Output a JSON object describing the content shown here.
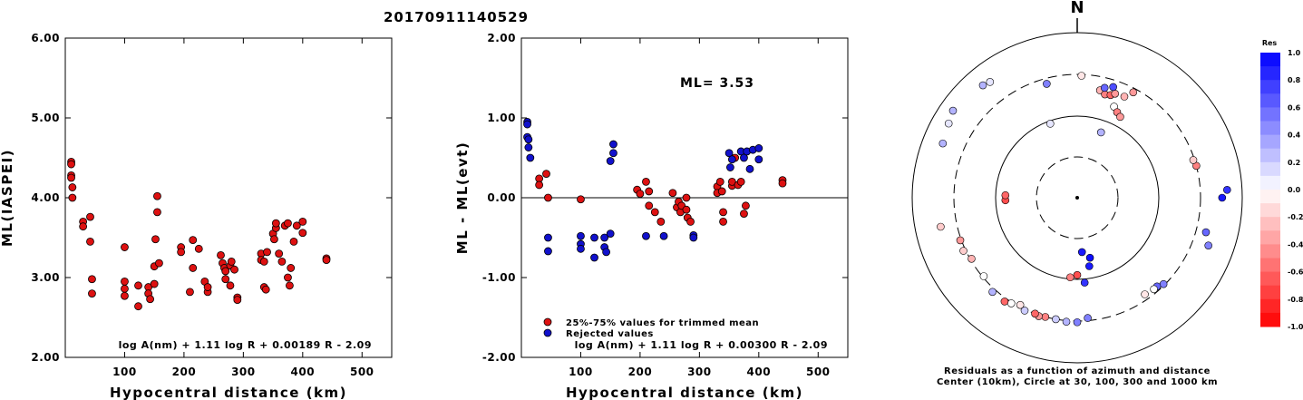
{
  "title": "20170911140529",
  "colors": {
    "accepted": "#dd1111",
    "rejected": "#1111cc",
    "stroke": "#000000"
  },
  "chart_data": [
    {
      "type": "scatter",
      "xlabel": "Hypocentral distance (km)",
      "ylabel": "ML(IASPEI)",
      "xlim": [
        0,
        550
      ],
      "ylim": [
        2.0,
        6.0
      ],
      "xticks": [
        "100",
        "200",
        "300",
        "400",
        "500"
      ],
      "yticks": [
        "2.00",
        "3.00",
        "4.00",
        "5.00",
        "6.00"
      ],
      "formula": "log A(nm) + 1.11 log R + 0.00189 R - 2.09",
      "series": [
        {
          "points": [
            [
              10,
              4.45
            ],
            [
              10,
              4.42
            ],
            [
              10,
              4.28
            ],
            [
              10,
              4.25
            ],
            [
              12,
              4.13
            ],
            [
              12,
              4.0
            ],
            [
              30,
              3.7
            ],
            [
              30,
              3.64
            ],
            [
              42,
              3.76
            ],
            [
              42,
              3.45
            ],
            [
              45,
              2.98
            ],
            [
              45,
              2.8
            ],
            [
              100,
              3.38
            ],
            [
              100,
              2.95
            ],
            [
              100,
              2.86
            ],
            [
              100,
              2.77
            ],
            [
              123,
              2.9
            ],
            [
              123,
              2.64
            ],
            [
              140,
              2.88
            ],
            [
              140,
              2.8
            ],
            [
              143,
              2.73
            ],
            [
              150,
              3.14
            ],
            [
              150,
              2.92
            ],
            [
              152,
              3.48
            ],
            [
              155,
              4.02
            ],
            [
              155,
              3.82
            ],
            [
              158,
              3.18
            ],
            [
              195,
              3.38
            ],
            [
              195,
              3.32
            ],
            [
              210,
              2.82
            ],
            [
              215,
              3.12
            ],
            [
              215,
              3.47
            ],
            [
              225,
              3.36
            ],
            [
              235,
              2.95
            ],
            [
              240,
              2.82
            ],
            [
              240,
              2.88
            ],
            [
              262,
              3.28
            ],
            [
              265,
              3.18
            ],
            [
              268,
              3.12
            ],
            [
              270,
              2.98
            ],
            [
              270,
              3.08
            ],
            [
              278,
              3.15
            ],
            [
              278,
              2.9
            ],
            [
              280,
              3.2
            ],
            [
              285,
              3.1
            ],
            [
              290,
              2.75
            ],
            [
              290,
              2.72
            ],
            [
              330,
              3.3
            ],
            [
              330,
              3.22
            ],
            [
              335,
              3.2
            ],
            [
              335,
              2.88
            ],
            [
              338,
              2.85
            ],
            [
              340,
              3.32
            ],
            [
              350,
              3.55
            ],
            [
              352,
              3.48
            ],
            [
              355,
              3.62
            ],
            [
              355,
              3.68
            ],
            [
              360,
              3.3
            ],
            [
              365,
              3.2
            ],
            [
              370,
              3.65
            ],
            [
              375,
              3.68
            ],
            [
              375,
              3.0
            ],
            [
              378,
              2.9
            ],
            [
              380,
              3.12
            ],
            [
              385,
              3.45
            ],
            [
              390,
              3.65
            ],
            [
              400,
              3.7
            ],
            [
              400,
              3.56
            ],
            [
              440,
              3.24
            ],
            [
              440,
              3.22
            ]
          ]
        }
      ]
    },
    {
      "type": "scatter",
      "xlabel": "Hypocentral distance (km)",
      "ylabel": "ML - ML(evt)",
      "xlim": [
        0,
        550
      ],
      "ylim": [
        -2.0,
        2.0
      ],
      "xticks": [
        "100",
        "200",
        "300",
        "400",
        "500"
      ],
      "yticks": [
        "-2.00",
        "-1.00",
        "0.00",
        "1.00",
        "2.00"
      ],
      "formula": "log A(nm) + 1.11 log R + 0.00300 R - 2.09",
      "annotation": "ML= 3.53",
      "legend": [
        "25%-75% values for trimmed mean",
        "Rejected values"
      ],
      "series": [
        {
          "name": "25%-75% values for trimmed mean",
          "points": [
            [
              30,
              0.24
            ],
            [
              30,
              0.16
            ],
            [
              42,
              0.3
            ],
            [
              45,
              0.0
            ],
            [
              100,
              -0.02
            ],
            [
              195,
              0.1
            ],
            [
              200,
              0.05
            ],
            [
              210,
              0.2
            ],
            [
              215,
              0.08
            ],
            [
              215,
              -0.1
            ],
            [
              225,
              -0.18
            ],
            [
              235,
              -0.3
            ],
            [
              255,
              0.06
            ],
            [
              262,
              -0.12
            ],
            [
              265,
              -0.05
            ],
            [
              268,
              -0.18
            ],
            [
              270,
              -0.1
            ],
            [
              278,
              0.0
            ],
            [
              278,
              -0.15
            ],
            [
              280,
              -0.25
            ],
            [
              285,
              -0.3
            ],
            [
              330,
              0.14
            ],
            [
              330,
              0.06
            ],
            [
              335,
              0.2
            ],
            [
              338,
              0.08
            ],
            [
              340,
              -0.18
            ],
            [
              340,
              -0.3
            ],
            [
              355,
              0.15
            ],
            [
              355,
              0.2
            ],
            [
              360,
              0.5
            ],
            [
              365,
              0.16
            ],
            [
              370,
              0.2
            ],
            [
              375,
              -0.2
            ],
            [
              378,
              -0.1
            ],
            [
              440,
              0.22
            ],
            [
              440,
              0.18
            ]
          ]
        },
        {
          "name": "Rejected values",
          "points": [
            [
              10,
              0.95
            ],
            [
              10,
              0.92
            ],
            [
              10,
              0.76
            ],
            [
              12,
              0.73
            ],
            [
              12,
              0.63
            ],
            [
              15,
              0.5
            ],
            [
              45,
              -0.5
            ],
            [
              45,
              -0.67
            ],
            [
              100,
              -0.48
            ],
            [
              100,
              -0.58
            ],
            [
              100,
              -0.64
            ],
            [
              123,
              -0.5
            ],
            [
              123,
              -0.75
            ],
            [
              140,
              -0.5
            ],
            [
              140,
              -0.62
            ],
            [
              143,
              -0.68
            ],
            [
              150,
              -0.45
            ],
            [
              150,
              0.46
            ],
            [
              155,
              0.67
            ],
            [
              155,
              0.56
            ],
            [
              210,
              -0.48
            ],
            [
              240,
              -0.48
            ],
            [
              290,
              -0.47
            ],
            [
              290,
              -0.5
            ],
            [
              350,
              0.56
            ],
            [
              352,
              0.38
            ],
            [
              355,
              0.48
            ],
            [
              370,
              0.58
            ],
            [
              375,
              0.5
            ],
            [
              380,
              0.58
            ],
            [
              385,
              0.36
            ],
            [
              390,
              0.6
            ],
            [
              400,
              0.62
            ],
            [
              400,
              0.48
            ]
          ]
        }
      ]
    }
  ],
  "polar": {
    "north_label": "N",
    "caption_line1": "Residuals as a function of azimuth and distance",
    "caption_line2": "Center (10km), Circle at 30, 100, 300 and 1000 km",
    "colorbar_title": "Res",
    "colorbar_ticks": [
      "1.0",
      "0.8",
      "0.6",
      "0.4",
      "0.2",
      "0.0",
      "-0.2",
      "-0.4",
      "-0.6",
      "-0.8",
      "-1.0"
    ],
    "stations": [
      {
        "az": 2,
        "dist": 290,
        "res": -0.1
      },
      {
        "az": 12,
        "dist": 210,
        "res": -0.3
      },
      {
        "az": 15,
        "dist": 195,
        "res": -0.5
      },
      {
        "az": 18,
        "dist": 200,
        "res": -0.6
      },
      {
        "az": 20,
        "dist": 215,
        "res": -0.4
      },
      {
        "az": 25,
        "dist": 220,
        "res": -0.3
      },
      {
        "az": 28,
        "dist": 270,
        "res": -0.4
      },
      {
        "az": 14,
        "dist": 230,
        "res": 0.6
      },
      {
        "az": 18,
        "dist": 250,
        "res": 0.7
      },
      {
        "az": 22,
        "dist": 155,
        "res": 0.0
      },
      {
        "az": 25,
        "dist": 140,
        "res": -0.5
      },
      {
        "az": 28,
        "dist": 130,
        "res": -0.4
      },
      {
        "az": 345,
        "dist": 260,
        "res": 0.5
      },
      {
        "az": 340,
        "dist": 92,
        "res": 0.1
      },
      {
        "az": 320,
        "dist": 590,
        "res": 0.3
      },
      {
        "az": 323,
        "dist": 560,
        "res": 0.1
      },
      {
        "az": 305,
        "dist": 680,
        "res": 0.3
      },
      {
        "az": 20,
        "dist": 70,
        "res": 0.3
      },
      {
        "az": 90,
        "dist": 560,
        "res": 0.9
      },
      {
        "az": 87,
        "dist": 650,
        "res": 0.8
      },
      {
        "az": 75,
        "dist": 300,
        "res": -0.5
      },
      {
        "az": 72,
        "dist": 290,
        "res": -0.2
      },
      {
        "az": 105,
        "dist": 400,
        "res": 0.6
      },
      {
        "az": 110,
        "dist": 480,
        "res": 0.5
      },
      {
        "az": 135,
        "dist": 290,
        "res": 0.5
      },
      {
        "az": 138,
        "dist": 270,
        "res": 0.6
      },
      {
        "az": 140,
        "dist": 270,
        "res": 0.0
      },
      {
        "az": 145,
        "dist": 260,
        "res": -0.1
      },
      {
        "az": 170,
        "dist": 70,
        "res": 0.9
      },
      {
        "az": 168,
        "dist": 55,
        "res": 0.95
      },
      {
        "az": 175,
        "dist": 45,
        "res": 0.9
      },
      {
        "az": 180,
        "dist": 88,
        "res": -0.7
      },
      {
        "az": 175,
        "dist": 280,
        "res": 0.5
      },
      {
        "az": 180,
        "dist": 310,
        "res": 0.5
      },
      {
        "az": 185,
        "dist": 310,
        "res": 0.3
      },
      {
        "az": 190,
        "dist": 300,
        "res": 0.2
      },
      {
        "az": 195,
        "dist": 300,
        "res": -0.5
      },
      {
        "az": 198,
        "dist": 310,
        "res": -0.4
      },
      {
        "az": 200,
        "dist": 300,
        "res": -0.6
      },
      {
        "az": 205,
        "dist": 310,
        "res": 0.2
      },
      {
        "az": 208,
        "dist": 285,
        "res": -0.1
      },
      {
        "az": 212,
        "dist": 310,
        "res": 0.0
      },
      {
        "az": 215,
        "dist": 330,
        "res": -0.6
      },
      {
        "az": 222,
        "dist": 330,
        "res": 0.3
      },
      {
        "az": 175,
        "dist": 110,
        "res": 0.8
      },
      {
        "az": 185,
        "dist": 95,
        "res": -0.5
      },
      {
        "az": 230,
        "dist": 290,
        "res": 0.0
      },
      {
        "az": 240,
        "dist": 290,
        "res": -0.3
      },
      {
        "az": 245,
        "dist": 320,
        "res": -0.2
      },
      {
        "az": 250,
        "dist": 310,
        "res": -0.4
      },
      {
        "az": 258,
        "dist": 480,
        "res": -0.2
      },
      {
        "az": 268,
        "dist": 75,
        "res": -0.7
      },
      {
        "az": 272,
        "dist": 75,
        "res": -0.6
      },
      {
        "az": 292,
        "dist": 560,
        "res": 0.3
      },
      {
        "az": 300,
        "dist": 620,
        "res": 0.1
      }
    ]
  }
}
